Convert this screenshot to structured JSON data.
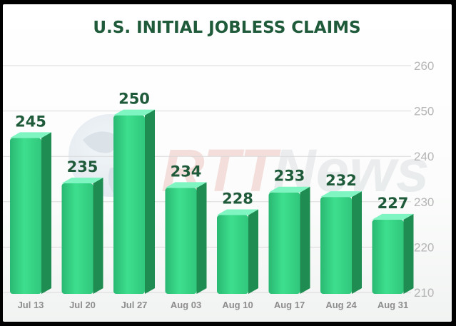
{
  "chart_data": {
    "type": "bar",
    "title": "U.S. INITIAL JOBLESS CLAIMS",
    "categories": [
      "Jul 13",
      "Jul 20",
      "Jul 27",
      "Aug 03",
      "Aug 10",
      "Aug 17",
      "Aug 24",
      "Aug 31"
    ],
    "values": [
      245,
      235,
      250,
      234,
      228,
      233,
      232,
      227
    ],
    "data_labels": [
      "245",
      "235",
      "250",
      "234",
      "228",
      "233",
      "232",
      "227"
    ],
    "ylim": [
      210,
      260
    ],
    "yticks": [
      210,
      220,
      230,
      240,
      250,
      260
    ],
    "y_axis_side": "right",
    "grid": true,
    "xlabel": "",
    "ylabel": "",
    "colors": {
      "bar_front": "#3ddf8e",
      "bar_top": "#7ff5c2",
      "bar_side": "#1f8d52",
      "title": "#1f5b3a",
      "grid": "#d9d9d9"
    }
  },
  "watermark": {
    "text": "RTTNews",
    "icon": "globe-icon"
  }
}
